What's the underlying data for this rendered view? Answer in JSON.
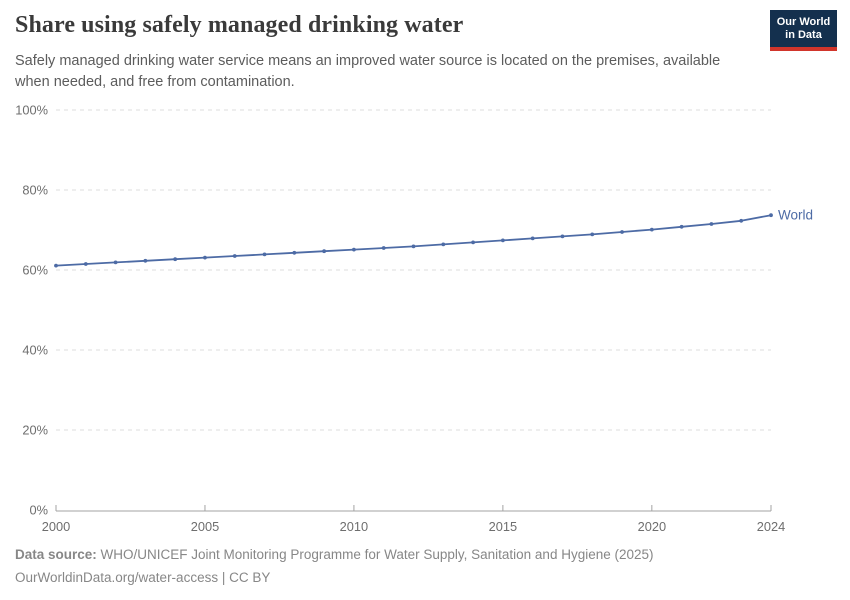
{
  "header": {
    "title": "Share using safely managed drinking water",
    "subtitle": "Safely managed drinking water service means an improved water source is located on the premises, available when needed, and free from contamination.",
    "logo": {
      "line1": "Our World",
      "line2": "in Data",
      "bg_color": "#14304e",
      "accent_color": "#d1352b"
    }
  },
  "chart_data": {
    "type": "line",
    "title": "Share using safely managed drinking water",
    "x": [
      2000,
      2001,
      2002,
      2003,
      2004,
      2005,
      2006,
      2007,
      2008,
      2009,
      2010,
      2011,
      2012,
      2013,
      2014,
      2015,
      2016,
      2017,
      2018,
      2019,
      2020,
      2021,
      2022,
      2023,
      2024
    ],
    "series": [
      {
        "name": "World",
        "color": "#4d6ba5",
        "values": [
          61.1,
          61.5,
          61.9,
          62.3,
          62.7,
          63.1,
          63.5,
          63.9,
          64.3,
          64.7,
          65.1,
          65.5,
          65.9,
          66.4,
          66.9,
          67.4,
          67.9,
          68.4,
          68.9,
          69.5,
          70.1,
          70.8,
          71.5,
          72.3,
          73.7
        ]
      }
    ],
    "xlabel": "",
    "ylabel": "",
    "xticks": [
      2000,
      2005,
      2010,
      2015,
      2020,
      2024
    ],
    "yticks": [
      0,
      20,
      40,
      60,
      80,
      100
    ],
    "ytick_suffix": "%",
    "xlim": [
      2000,
      2024
    ],
    "ylim": [
      0,
      100
    ],
    "grid": "horizontal-dashed",
    "legend": "inline-end-label",
    "markers": true
  },
  "footer": {
    "datasource_label": "Data source:",
    "datasource_text": " WHO/UNICEF Joint Monitoring Programme for Water Supply, Sanitation and Hygiene (2025)",
    "link_text": "OurWorldinData.org/water-access",
    "separator": " | ",
    "license": "CC BY"
  }
}
